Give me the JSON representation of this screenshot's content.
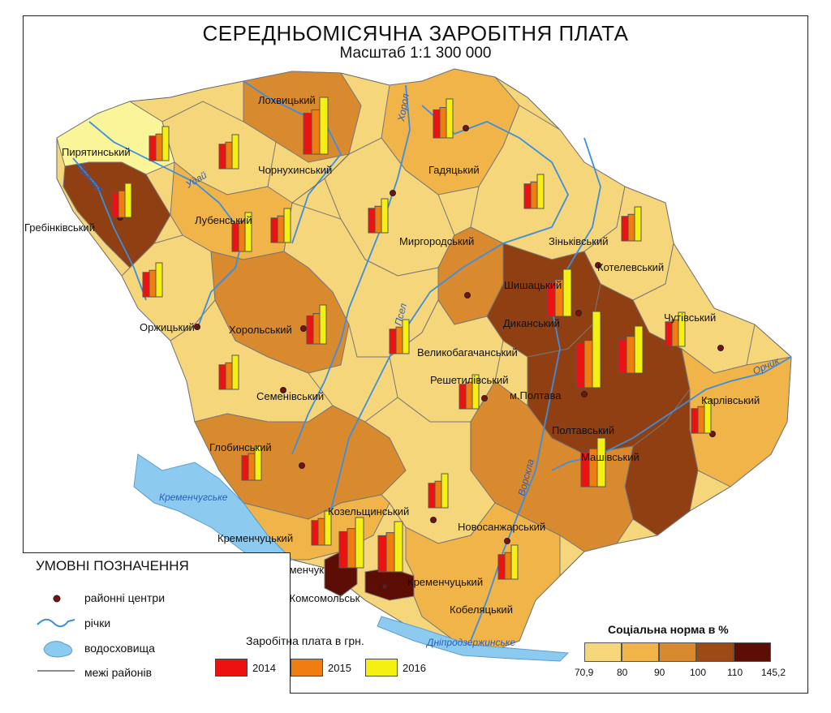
{
  "title": "СЕРЕДНЬОМІСЯЧНА ЗАРОБІТНЯ ПЛАТА",
  "scale": "Масштаб 1:1 300 000",
  "legend": {
    "title": "УМОВНІ ПОЗНАЧЕННЯ",
    "centers": "районні центри",
    "rivers": "річки",
    "reservoirs": "водосховища",
    "borders": "межі районів"
  },
  "salary_legend": {
    "title": "Заробітна плата в грн.",
    "years": [
      "2014",
      "2015",
      "2016"
    ],
    "colors": [
      "#ee1111",
      "#f07d10",
      "#f5f010"
    ]
  },
  "norm_legend": {
    "title": "Соціальна норма в %",
    "breaks": [
      "70,9",
      "80",
      "90",
      "100",
      "110",
      "145,2"
    ],
    "colors": [
      "#f6d67a",
      "#f0b448",
      "#d98a2e",
      "#9e4a14",
      "#5c0d04"
    ]
  },
  "districts": {
    "pyriatyn": "Пирятинський",
    "lokhvytsia": "Лохвицький",
    "chornukhy": "Чорнухинський",
    "hrebinka": "Гребінківський",
    "lubny": "Лубенський",
    "hadiach": "Гадяцький",
    "myrhorod": "Миргородський",
    "zinkiv": "Зіньківський",
    "kotelva": "Котелевський",
    "shyshaky": "Шишацький",
    "orzhytsia": "Оржицький",
    "khorol": "Хорольський",
    "dykanka": "Диканський",
    "chutove": "Чутівський",
    "velbahachka": "Великобагачанський",
    "semenivka": "Семенівський",
    "reshetylivka": "Решетилівський",
    "poltava_city": "м.Полтава",
    "karlivka": "Карлівський",
    "poltava_raion": "Полтавський",
    "hlobyne": "Глобинський",
    "mashivka": "Машівський",
    "kozelshchyna": "Козельщинський",
    "novosanzhary": "Новосанжарський",
    "kremenchuk_raion": "Кременчуцький",
    "kremenchuk_city": "м.Кременчук",
    "komsomolsk": "м.Комсомольськ",
    "kremenchuk_raion2": "Кременчуцький",
    "kobeliaky": "Кобеляцький"
  },
  "rivers": {
    "khorol": "Хорол",
    "orzhytsia": "Оржиця",
    "udai": "Удай",
    "psel": "Псел",
    "orchyk": "Орчик",
    "vorskla": "Ворскла"
  },
  "reservoirs": {
    "kremenchuk": "Кременчугське",
    "dniprodzerzhynsk": "Дніпродзержинське"
  },
  "salary_bars": [
    {
      "district": "Пирятинський",
      "values": [
        0.72,
        0.78,
        1.0
      ]
    },
    {
      "district": "Лохвицький",
      "values": [
        0.72,
        0.78,
        1.0
      ]
    },
    {
      "district": "Чорнухинський",
      "values": [
        0.72,
        0.78,
        1.0
      ]
    },
    {
      "district": "Гребінківський",
      "values": [
        0.72,
        0.78,
        1.0
      ]
    },
    {
      "district": "Лубенський",
      "values": [
        0.72,
        0.78,
        1.0
      ]
    },
    {
      "district": "Гадяцький",
      "values": [
        0.72,
        0.78,
        1.0
      ]
    },
    {
      "district": "Миргородський",
      "values": [
        0.72,
        0.78,
        1.0
      ]
    },
    {
      "district": "Зіньківський",
      "values": [
        0.72,
        0.78,
        1.0
      ]
    },
    {
      "district": "Шишацький",
      "values": [
        0.72,
        0.78,
        1.0
      ]
    },
    {
      "district": "Котелевський",
      "values": [
        0.72,
        0.78,
        1.0
      ]
    },
    {
      "district": "Оржицький",
      "values": [
        0.72,
        0.78,
        1.0
      ]
    },
    {
      "district": "Хорольський",
      "values": [
        0.72,
        0.78,
        1.0
      ]
    },
    {
      "district": "Диканський",
      "values": [
        0.72,
        0.78,
        1.0
      ]
    },
    {
      "district": "Чутівський",
      "values": [
        0.72,
        0.78,
        1.0
      ]
    },
    {
      "district": "Великобагачанський",
      "values": [
        0.72,
        0.78,
        1.0
      ]
    },
    {
      "district": "Семенівський",
      "values": [
        0.72,
        0.78,
        1.0
      ]
    },
    {
      "district": "Решетилівський",
      "values": [
        0.72,
        0.78,
        1.0
      ]
    },
    {
      "district": "м.Полтава",
      "values": [
        0.58,
        0.62,
        1.0
      ]
    },
    {
      "district": "Полтавський",
      "values": [
        0.72,
        0.78,
        1.0
      ]
    },
    {
      "district": "Карлівський",
      "values": [
        0.72,
        0.78,
        1.0
      ]
    },
    {
      "district": "Машівський",
      "values": [
        0.72,
        0.78,
        1.0
      ]
    },
    {
      "district": "Глобинський",
      "values": [
        0.72,
        0.78,
        1.0
      ]
    },
    {
      "district": "Козельщинський",
      "values": [
        0.72,
        0.78,
        1.0
      ]
    },
    {
      "district": "Новосанжарський",
      "values": [
        0.72,
        0.78,
        1.0
      ]
    },
    {
      "district": "Кременчуцький",
      "values": [
        0.72,
        0.78,
        1.0
      ]
    },
    {
      "district": "м.Кременчук",
      "values": [
        0.72,
        0.78,
        1.0
      ]
    },
    {
      "district": "м.Комсомольськ",
      "values": [
        0.72,
        0.78,
        1.0
      ]
    },
    {
      "district": "Кобеляцький",
      "values": [
        0.72,
        0.78,
        1.0
      ]
    }
  ]
}
